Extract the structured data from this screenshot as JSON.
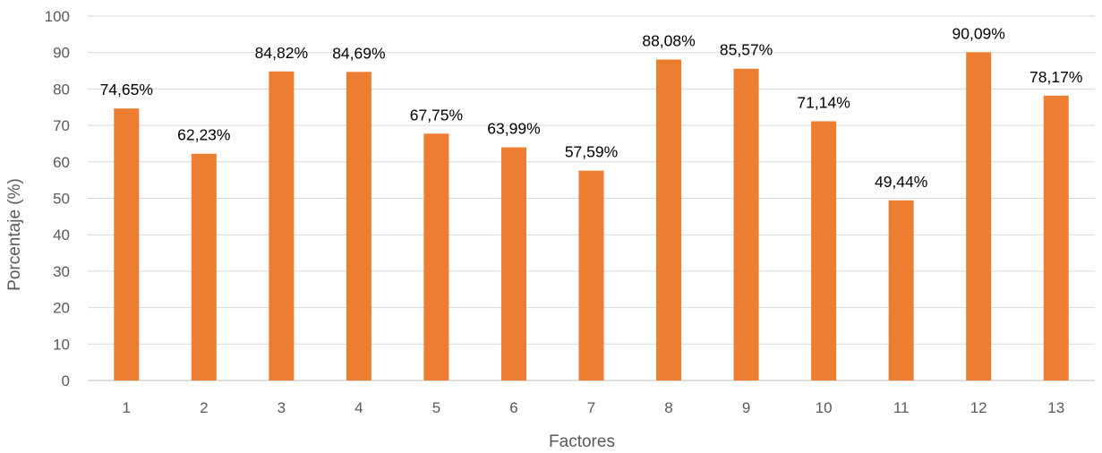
{
  "chart_data": {
    "type": "bar",
    "categories": [
      "1",
      "2",
      "3",
      "4",
      "5",
      "6",
      "7",
      "8",
      "9",
      "10",
      "11",
      "12",
      "13"
    ],
    "values": [
      74.65,
      62.23,
      84.82,
      84.69,
      67.75,
      63.99,
      57.59,
      88.08,
      85.57,
      71.14,
      49.44,
      90.09,
      78.17
    ],
    "data_labels": [
      "74,65%",
      "62,23%",
      "84,82%",
      "84,69%",
      "67,75%",
      "63,99%",
      "57,59%",
      "88,08%",
      "85,57%",
      "71,14%",
      "49,44%",
      "90,09%",
      "78,17%"
    ],
    "title": "",
    "xlabel": "Factores",
    "ylabel": "Porcentaje (%)",
    "ylim": [
      0,
      100
    ],
    "yticks": [
      "0",
      "10",
      "20",
      "30",
      "40",
      "50",
      "60",
      "70",
      "80",
      "90",
      "100"
    ],
    "grid": true,
    "legend": "none",
    "bar_color": "#ED7D31"
  }
}
